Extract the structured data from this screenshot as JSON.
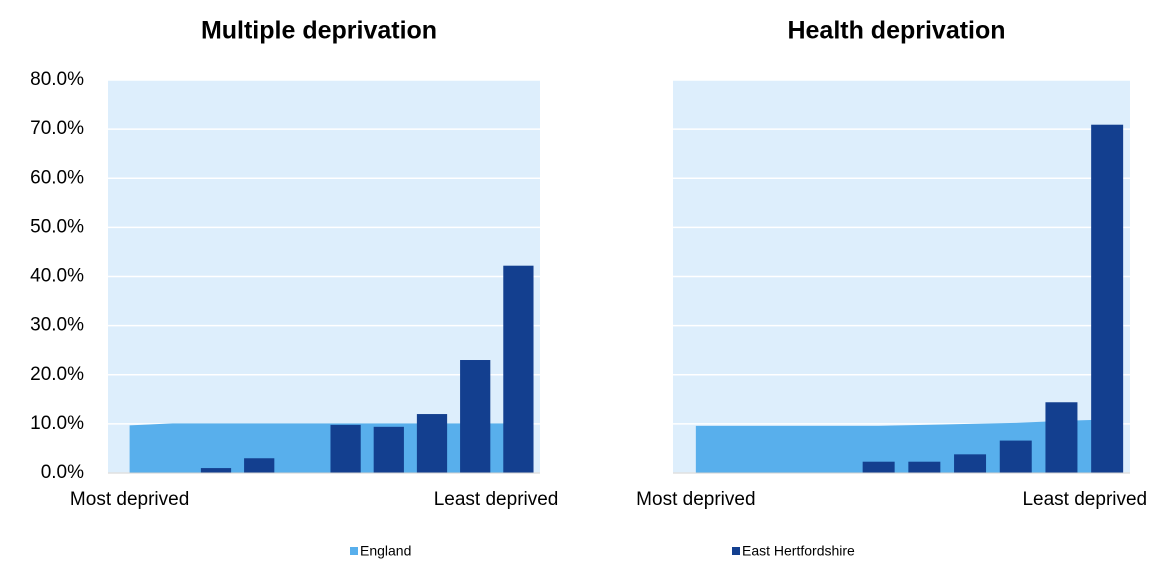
{
  "chart_data": [
    {
      "type": "bar",
      "title": "Multiple deprivation",
      "categories": [
        "Most deprived",
        null,
        null,
        null,
        null,
        null,
        null,
        null,
        null,
        "Least deprived"
      ],
      "series": [
        {
          "name": "England",
          "color": "#58afec",
          "values": [
            9.7,
            10.1,
            10.1,
            10.1,
            10.1,
            10.1,
            10.1,
            10.1,
            10.1,
            10.1
          ],
          "kind": "area"
        },
        {
          "name": "East Hertfordshire",
          "color": "#133f8f",
          "values": [
            0,
            0,
            1.0,
            3.0,
            0,
            9.8,
            9.4,
            12.0,
            23.0,
            42.2
          ],
          "kind": "bar"
        }
      ],
      "ylim": [
        0,
        80
      ],
      "yticks": [
        {
          "value": 0,
          "label": "0.0%"
        },
        {
          "value": 10,
          "label": "10.0%"
        },
        {
          "value": 20,
          "label": "20.0%"
        },
        {
          "value": 30,
          "label": "30.0%"
        },
        {
          "value": 40,
          "label": "40.0%"
        },
        {
          "value": 50,
          "label": "50.0%"
        },
        {
          "value": 60,
          "label": "60.0%"
        },
        {
          "value": 70,
          "label": "70.0%"
        },
        {
          "value": 80,
          "label": "80.0%"
        }
      ],
      "grid": true
    },
    {
      "type": "bar",
      "title": "Health deprivation",
      "categories": [
        "Most deprived",
        null,
        null,
        null,
        null,
        null,
        null,
        null,
        null,
        "Least deprived"
      ],
      "series": [
        {
          "color": "#58afec",
          "values": [
            9.6,
            9.6,
            9.6,
            9.6,
            9.6,
            9.8,
            10.0,
            10.2,
            10.6,
            10.9
          ],
          "kind": "area"
        },
        {
          "color": "#133f8f",
          "values": [
            0,
            0,
            0,
            0,
            2.3,
            2.3,
            3.8,
            6.6,
            14.4,
            70.9
          ],
          "kind": "bar"
        }
      ],
      "ylim": [
        0,
        80
      ],
      "grid": true
    }
  ]
}
